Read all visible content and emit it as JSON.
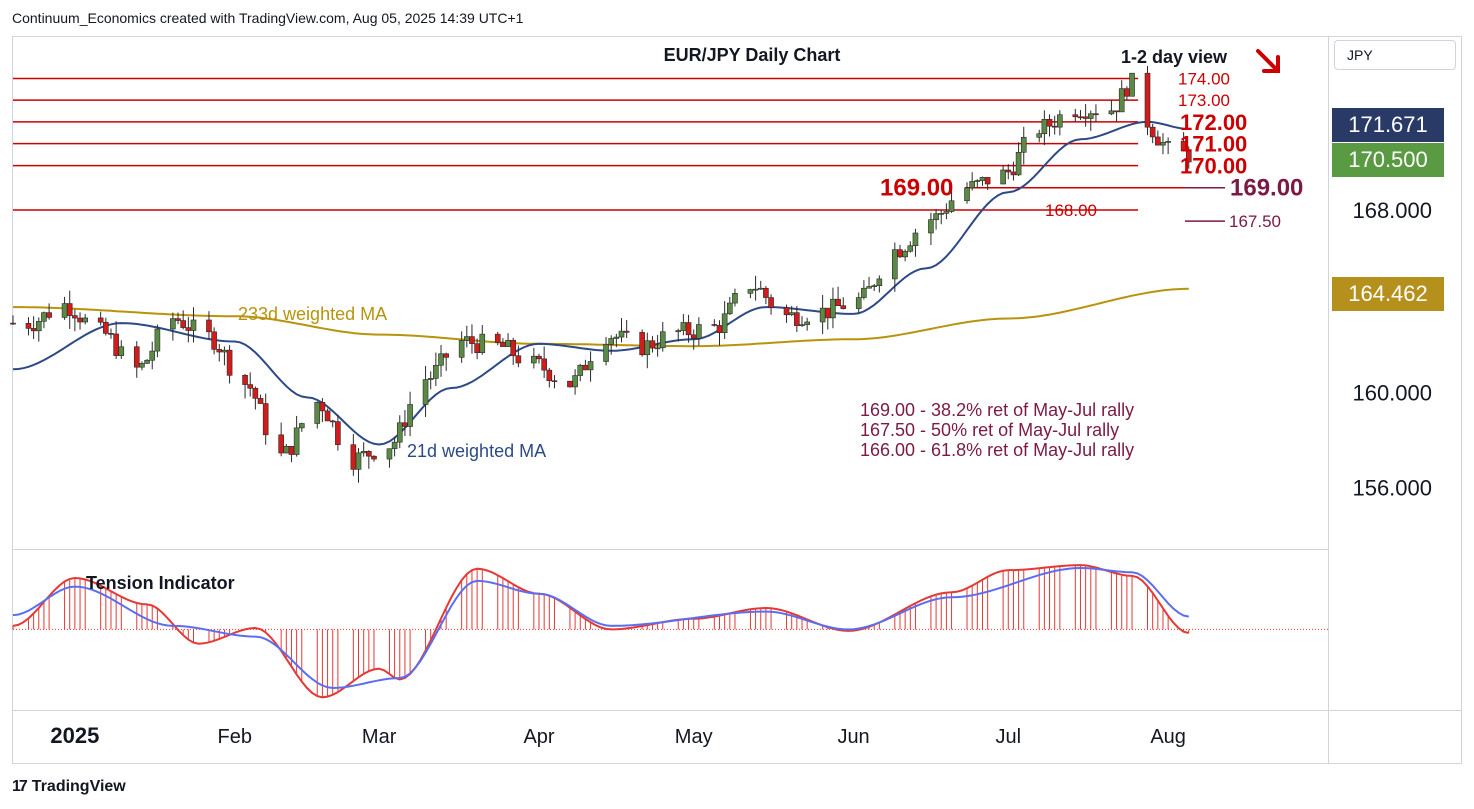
{
  "header": {
    "attribution": "Continuum_Economics created with TradingView.com, Aug 05, 2025 14:39 UTC+1"
  },
  "currency_selector": {
    "label": "JPY"
  },
  "price_badges": {
    "current_ma21": {
      "label": "171.671",
      "color": "#2a3a66"
    },
    "last_price": {
      "label": "170.500",
      "color": "#5a9a43"
    },
    "ma233": {
      "label": "164.462",
      "color": "#b5901d"
    }
  },
  "footer": {
    "brand": "TradingView",
    "logo_icon": "tradingview-logo-icon"
  },
  "colors": {
    "up_candle": "#5a8a45",
    "down_candle": "#d11c1c",
    "resistance": "#cc0000",
    "support_fib": "#7b1a45",
    "ma21": "#2d4a86",
    "ma233": "#b8930d",
    "tension_fill": "#e53935",
    "tension_signal": "#5a6ff0"
  },
  "chart_data": [
    {
      "type": "candlestick",
      "title": "EUR/JPY Daily Chart",
      "view_label": "1-2 day view",
      "view_direction_icon": "arrow-down-right-icon",
      "y_scale": "log",
      "y_ticks": [
        156.0,
        160.0,
        168.0
      ],
      "y_tick_labels": [
        "156.000",
        "160.000",
        "168.000"
      ],
      "x_ticks": [
        "2025",
        "Feb",
        "Mar",
        "Apr",
        "May",
        "Jun",
        "Jul",
        "Aug"
      ],
      "x_tick_dates": [
        "2025-01-01",
        "2025-02-01",
        "2025-03-01",
        "2025-04-01",
        "2025-05-01",
        "2025-06-01",
        "2025-07-01",
        "2025-08-01"
      ],
      "ylim": [
        153.5,
        175.8
      ],
      "resistance_levels": [
        {
          "value": 174.0,
          "label": "174.00"
        },
        {
          "value": 173.0,
          "label": "173.00"
        },
        {
          "value": 172.0,
          "label": "172.00"
        },
        {
          "value": 171.0,
          "label": "171.00"
        },
        {
          "value": 170.0,
          "label": "170.00"
        },
        {
          "value": 168.0,
          "label": "168.00"
        }
      ],
      "level_169": {
        "value": 169.0,
        "label_left": "169.00",
        "label_right": "169.00"
      },
      "level_1675": {
        "value": 167.5,
        "label": "167.50"
      },
      "ma_labels": {
        "ma233": "233d weighted MA",
        "ma21": "21d weighted MA"
      },
      "fib_notes": [
        "169.00 - 38.2% ret of May-Jul rally",
        "167.50 - 50% ret of May-Jul rally",
        "166.00 - 61.8% ret of May-Jul rally"
      ],
      "anchors": [
        {
          "date": "2024-12-23",
          "close": 163.0
        },
        {
          "date": "2024-12-30",
          "close": 163.8
        },
        {
          "date": "2025-01-06",
          "close": 162.6
        },
        {
          "date": "2025-01-13",
          "close": 161.0
        },
        {
          "date": "2025-01-20",
          "close": 163.2
        },
        {
          "date": "2025-01-27",
          "close": 162.4
        },
        {
          "date": "2025-02-03",
          "close": 160.4
        },
        {
          "date": "2025-02-10",
          "close": 157.3
        },
        {
          "date": "2025-02-17",
          "close": 159.6
        },
        {
          "date": "2025-02-24",
          "close": 157.2
        },
        {
          "date": "2025-03-03",
          "close": 157.8
        },
        {
          "date": "2025-03-10",
          "close": 160.6
        },
        {
          "date": "2025-03-17",
          "close": 162.2
        },
        {
          "date": "2025-03-24",
          "close": 162.0
        },
        {
          "date": "2025-03-31",
          "close": 161.2
        },
        {
          "date": "2025-04-07",
          "close": 160.4
        },
        {
          "date": "2025-04-14",
          "close": 162.5
        },
        {
          "date": "2025-04-21",
          "close": 162.0
        },
        {
          "date": "2025-04-28",
          "close": 162.6
        },
        {
          "date": "2025-05-05",
          "close": 162.8
        },
        {
          "date": "2025-05-12",
          "close": 164.7
        },
        {
          "date": "2025-05-19",
          "close": 163.3
        },
        {
          "date": "2025-05-26",
          "close": 163.5
        },
        {
          "date": "2025-06-02",
          "close": 164.0
        },
        {
          "date": "2025-06-09",
          "close": 166.2
        },
        {
          "date": "2025-06-16",
          "close": 167.6
        },
        {
          "date": "2025-06-23",
          "close": 169.0
        },
        {
          "date": "2025-06-30",
          "close": 169.6
        },
        {
          "date": "2025-07-07",
          "close": 171.7
        },
        {
          "date": "2025-07-14",
          "close": 172.6
        },
        {
          "date": "2025-07-21",
          "close": 172.6
        },
        {
          "date": "2025-07-25",
          "close": 173.8
        },
        {
          "date": "2025-07-28",
          "close": 172.0
        },
        {
          "date": "2025-07-30",
          "close": 171.3
        },
        {
          "date": "2025-08-01",
          "close": 170.7
        },
        {
          "date": "2025-08-05",
          "close": 170.5
        }
      ],
      "ma233": [
        {
          "date": "2024-12-20",
          "value": 163.7
        },
        {
          "date": "2025-02-01",
          "value": 163.3
        },
        {
          "date": "2025-03-01",
          "value": 162.5
        },
        {
          "date": "2025-04-01",
          "value": 162.1
        },
        {
          "date": "2025-05-01",
          "value": 162.0
        },
        {
          "date": "2025-06-01",
          "value": 162.3
        },
        {
          "date": "2025-07-01",
          "value": 163.2
        },
        {
          "date": "2025-08-05",
          "value": 164.5
        }
      ],
      "ma21": [
        {
          "date": "2024-12-20",
          "value": 161.0
        },
        {
          "date": "2025-01-10",
          "value": 163.0
        },
        {
          "date": "2025-02-01",
          "value": 162.2
        },
        {
          "date": "2025-02-15",
          "value": 159.8
        },
        {
          "date": "2025-03-01",
          "value": 157.8
        },
        {
          "date": "2025-03-15",
          "value": 160.2
        },
        {
          "date": "2025-04-01",
          "value": 162.1
        },
        {
          "date": "2025-04-15",
          "value": 161.8
        },
        {
          "date": "2025-05-01",
          "value": 162.3
        },
        {
          "date": "2025-05-15",
          "value": 163.7
        },
        {
          "date": "2025-06-01",
          "value": 163.4
        },
        {
          "date": "2025-06-15",
          "value": 165.4
        },
        {
          "date": "2025-07-01",
          "value": 168.8
        },
        {
          "date": "2025-07-15",
          "value": 171.2
        },
        {
          "date": "2025-07-28",
          "value": 172.0
        },
        {
          "date": "2025-08-05",
          "value": 171.67
        }
      ]
    },
    {
      "type": "area",
      "title": "Tension Indicator",
      "baseline": 0,
      "ylim": [
        -1.1,
        1.0
      ],
      "tension": [
        {
          "date": "2024-12-20",
          "value": 0.05
        },
        {
          "date": "2025-01-01",
          "value": 0.72
        },
        {
          "date": "2025-01-15",
          "value": 0.35
        },
        {
          "date": "2025-01-25",
          "value": -0.2
        },
        {
          "date": "2025-02-05",
          "value": 0.02
        },
        {
          "date": "2025-02-18",
          "value": -0.95
        },
        {
          "date": "2025-03-01",
          "value": -0.55
        },
        {
          "date": "2025-03-05",
          "value": -0.7
        },
        {
          "date": "2025-03-20",
          "value": 0.85
        },
        {
          "date": "2025-04-01",
          "value": 0.5
        },
        {
          "date": "2025-04-15",
          "value": 0.0
        },
        {
          "date": "2025-05-01",
          "value": 0.15
        },
        {
          "date": "2025-05-15",
          "value": 0.3
        },
        {
          "date": "2025-05-31",
          "value": -0.02
        },
        {
          "date": "2025-06-20",
          "value": 0.52
        },
        {
          "date": "2025-07-01",
          "value": 0.83
        },
        {
          "date": "2025-07-15",
          "value": 0.9
        },
        {
          "date": "2025-07-25",
          "value": 0.75
        },
        {
          "date": "2025-08-05",
          "value": -0.05
        }
      ],
      "signal": [
        {
          "date": "2024-12-20",
          "value": 0.2
        },
        {
          "date": "2025-01-01",
          "value": 0.6
        },
        {
          "date": "2025-01-20",
          "value": 0.05
        },
        {
          "date": "2025-02-05",
          "value": -0.1
        },
        {
          "date": "2025-02-20",
          "value": -0.82
        },
        {
          "date": "2025-03-05",
          "value": -0.68
        },
        {
          "date": "2025-03-20",
          "value": 0.68
        },
        {
          "date": "2025-04-01",
          "value": 0.5
        },
        {
          "date": "2025-04-15",
          "value": 0.05
        },
        {
          "date": "2025-05-15",
          "value": 0.25
        },
        {
          "date": "2025-05-31",
          "value": 0.0
        },
        {
          "date": "2025-06-20",
          "value": 0.45
        },
        {
          "date": "2025-07-15",
          "value": 0.86
        },
        {
          "date": "2025-07-25",
          "value": 0.8
        },
        {
          "date": "2025-08-05",
          "value": 0.18
        }
      ]
    }
  ]
}
